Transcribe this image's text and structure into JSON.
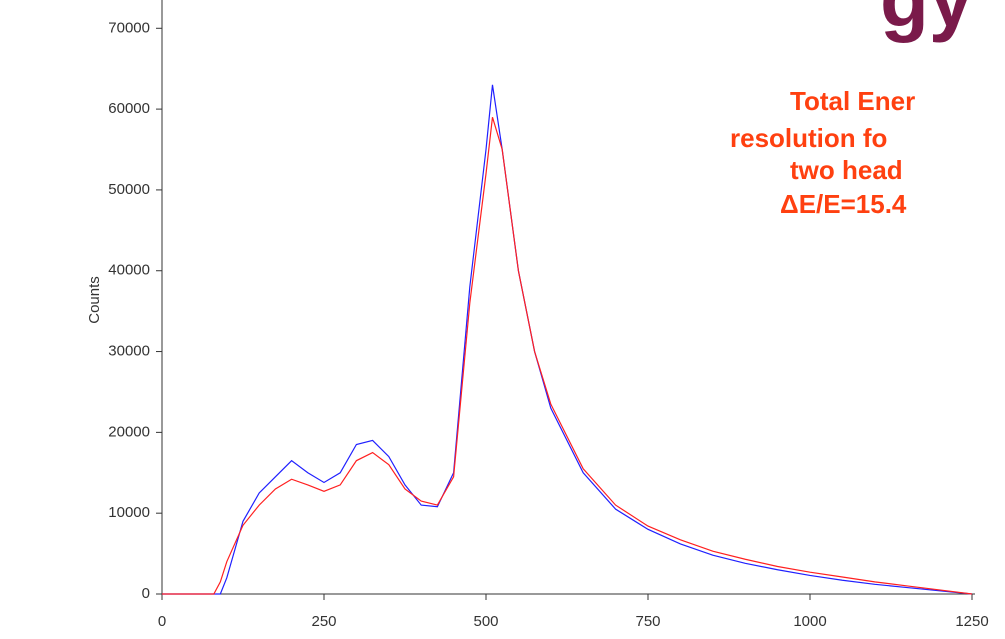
{
  "chart_data": {
    "type": "line",
    "title": "gy",
    "ylabel": "Counts",
    "annotation": [
      "Total Ener",
      "resolution fo",
      "two head",
      "ΔE/E=15.4"
    ],
    "x": [
      0,
      50,
      80,
      90,
      100,
      125,
      150,
      175,
      200,
      225,
      250,
      275,
      300,
      325,
      350,
      375,
      400,
      425,
      450,
      475,
      500,
      510,
      525,
      550,
      575,
      600,
      650,
      700,
      750,
      800,
      850,
      900,
      950,
      1000,
      1050,
      1100,
      1150,
      1200,
      1250
    ],
    "series": [
      {
        "name": "blue",
        "color": "#2020ff",
        "values": [
          0,
          0,
          0,
          0,
          2000,
          9000,
          12500,
          14500,
          16500,
          15000,
          13800,
          15000,
          18500,
          19000,
          17000,
          13500,
          11000,
          10800,
          15000,
          38000,
          55000,
          63000,
          55000,
          40000,
          30000,
          23000,
          15000,
          10500,
          8000,
          6200,
          4800,
          3800,
          3000,
          2300,
          1700,
          1200,
          800,
          400,
          0
        ]
      },
      {
        "name": "red",
        "color": "#ff2020",
        "values": [
          0,
          0,
          0,
          1500,
          4000,
          8500,
          11000,
          13000,
          14200,
          13500,
          12700,
          13500,
          16500,
          17500,
          16000,
          13000,
          11500,
          11000,
          14500,
          36000,
          52000,
          59000,
          55000,
          40000,
          30000,
          23500,
          15500,
          11000,
          8400,
          6700,
          5300,
          4300,
          3400,
          2700,
          2100,
          1500,
          1000,
          500,
          0
        ]
      }
    ],
    "xlim": [
      0,
      1250
    ],
    "xticks": [
      0,
      250,
      500,
      750,
      1000,
      1250
    ],
    "ylim": [
      0,
      73500
    ],
    "yticks": [
      0,
      10000,
      20000,
      30000,
      40000,
      50000,
      60000,
      70000
    ]
  }
}
